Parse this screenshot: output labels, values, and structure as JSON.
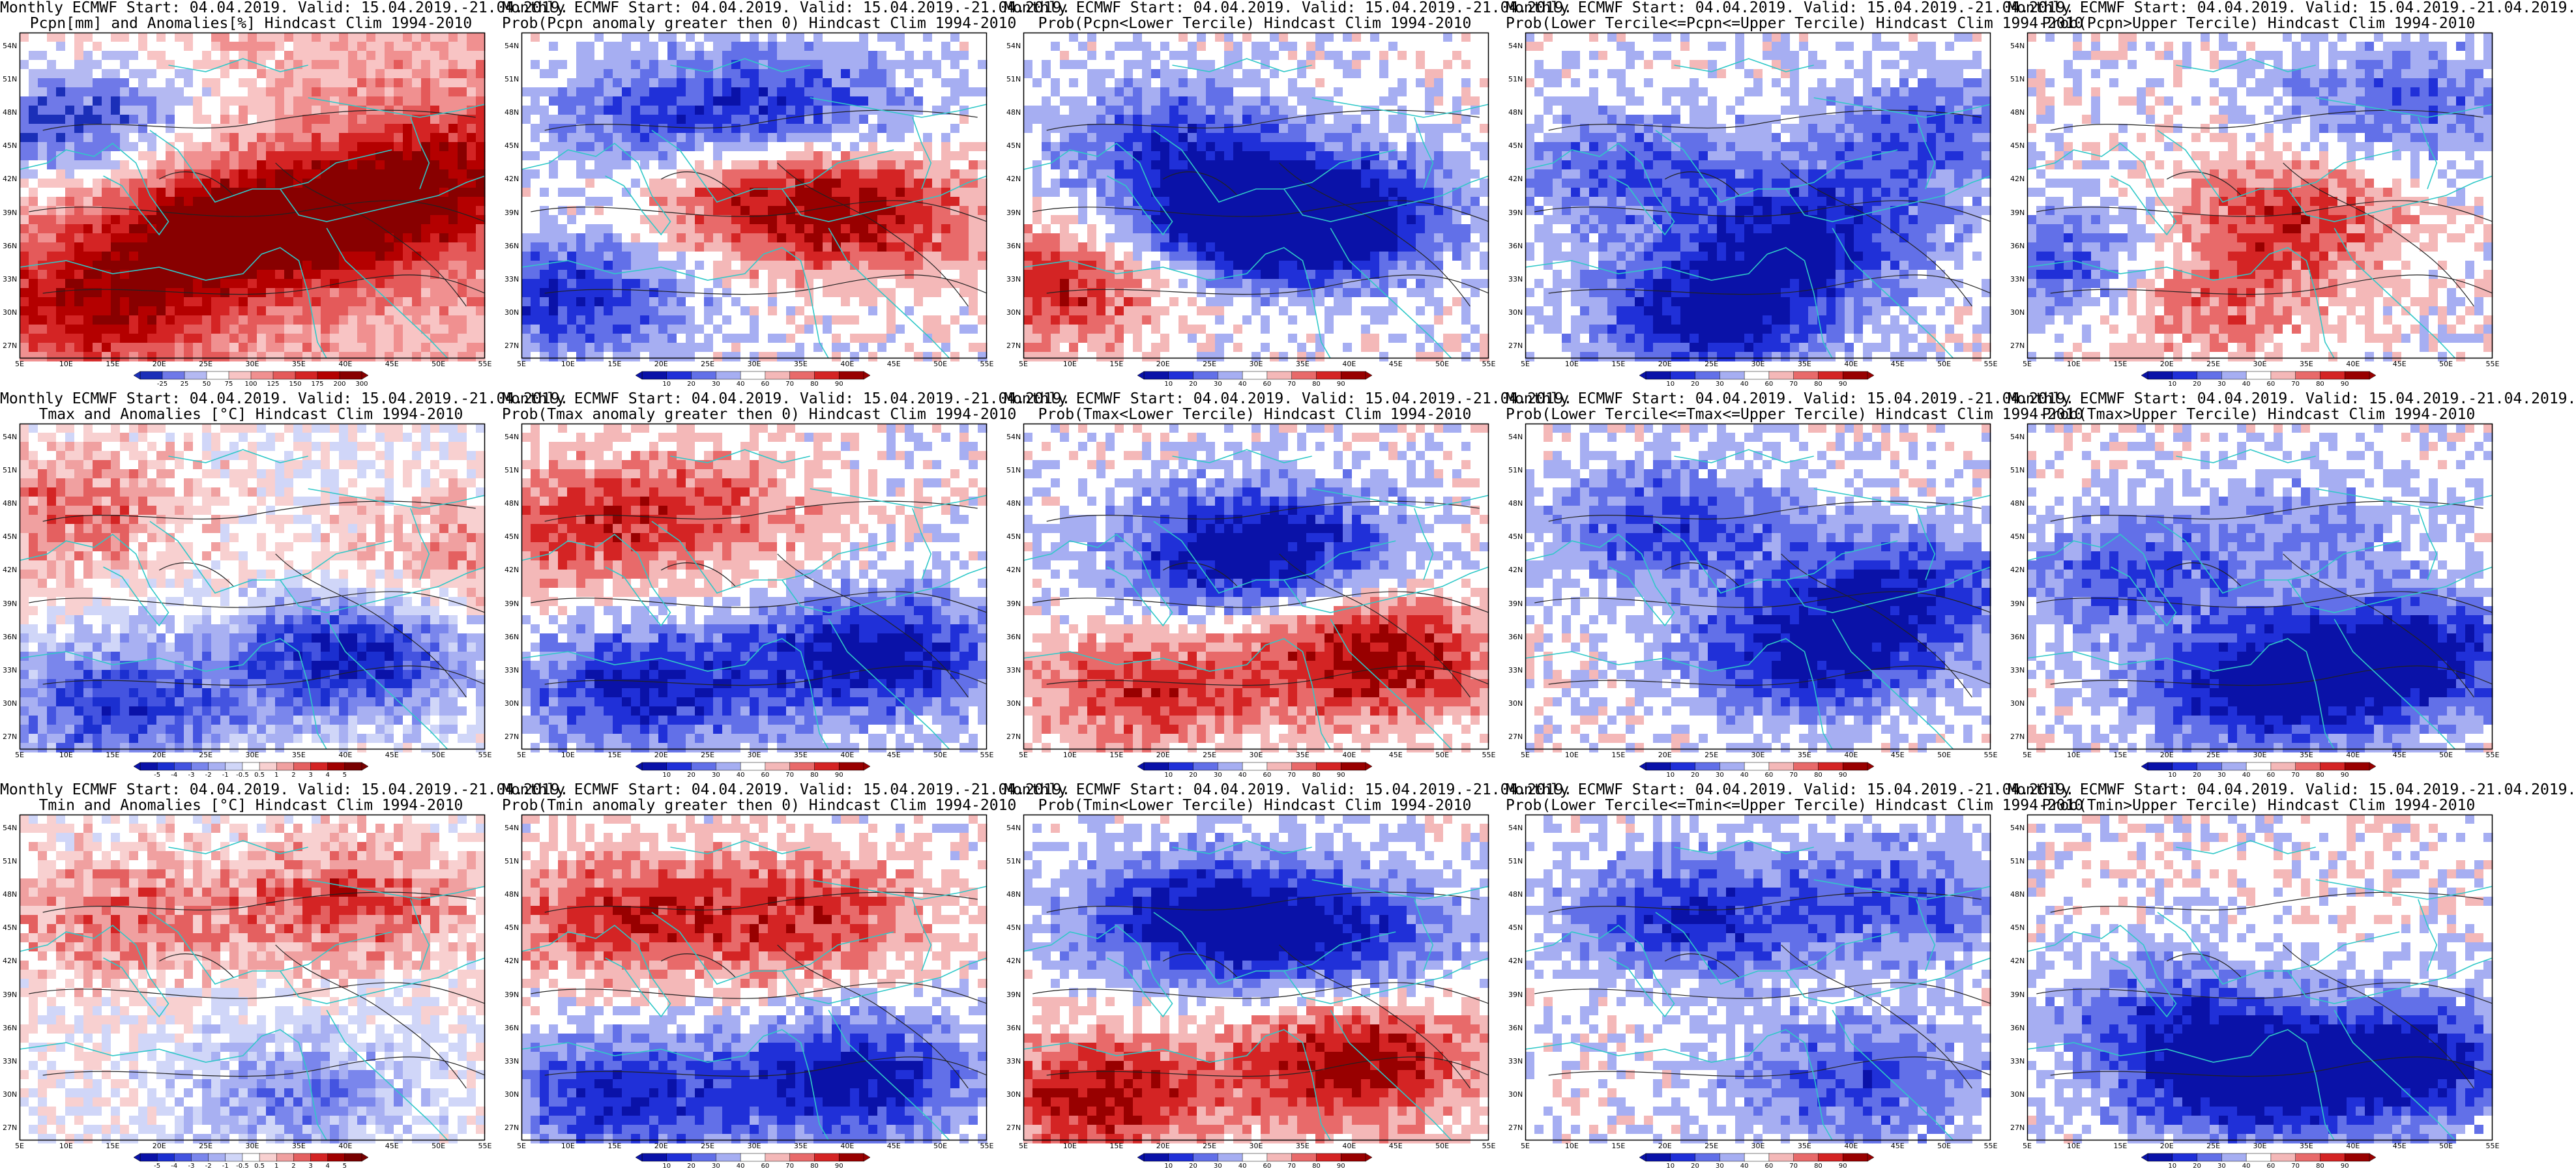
{
  "page": {
    "rows": 3,
    "cols": 5
  },
  "axes": {
    "lat_labels": [
      "54N",
      "51N",
      "48N",
      "45N",
      "42N",
      "39N",
      "36N",
      "33N",
      "30N",
      "27N"
    ],
    "lon_labels": [
      "5E",
      "10E",
      "15E",
      "20E",
      "25E",
      "30E",
      "35E",
      "40E",
      "45E",
      "50E",
      "55E"
    ]
  },
  "colors": {
    "coast": "#30c8c8",
    "contour": "#222222",
    "frame": "#000000"
  },
  "legends": {
    "precip_anom": {
      "labels": [
        "-25",
        "25",
        "50",
        "75",
        "100",
        "125",
        "150",
        "175",
        "200",
        "300"
      ],
      "colors": [
        "#1b2fb8",
        "#6f79e8",
        "#b4b9f2",
        "#ffffff",
        "#f8c4c4",
        "#f09090",
        "#e45a5a",
        "#d42424",
        "#b40000",
        "#880000"
      ]
    },
    "temp_anom": {
      "labels": [
        "-5",
        "-4",
        "-3",
        "-2",
        "-1",
        "-0.5",
        "0.5",
        "1",
        "2",
        "3",
        "4",
        "5"
      ],
      "colors": [
        "#0a12a8",
        "#1b2fd0",
        "#4454e0",
        "#7a86ec",
        "#a8b0f2",
        "#d0d6f8",
        "#ffffff",
        "#f8d0d0",
        "#f0a0a0",
        "#e46060",
        "#d42424",
        "#a00000",
        "#780000"
      ]
    },
    "prob": {
      "labels": [
        "10",
        "20",
        "30",
        "40",
        "60",
        "70",
        "80",
        "90"
      ],
      "colors": [
        "#0a12a8",
        "#2030d8",
        "#6270e8",
        "#a6aef2",
        "#ffffff",
        "#f4b8b8",
        "#e86a6a",
        "#d42424",
        "#980000"
      ]
    }
  },
  "panels": [
    {
      "title1": "Monthly ECMWF Start: 04.04.2019. Valid: 15.04.2019.-21.04.2019.",
      "title2": "Pcpn[mm] and Anomalies[%] Hindcast Clim 1994-2010",
      "legend": "precip_anom",
      "field": "precip_anom"
    },
    {
      "title1": "Monthly ECMWF Start: 04.04.2019. Valid: 15.04.2019.-21.04.2019.",
      "title2": "Prob(Pcpn anomaly greater then 0) Hindcast Clim 1994-2010",
      "legend": "prob",
      "field": "prob_gt0_p"
    },
    {
      "title1": "Monthly ECMWF Start: 04.04.2019. Valid: 15.04.2019.-21.04.2019.",
      "title2": "Prob(Pcpn<Lower Tercile) Hindcast Clim 1994-2010",
      "legend": "prob",
      "field": "prob_low_p"
    },
    {
      "title1": "Monthly ECMWF Start: 04.04.2019. Valid: 15.04.2019.-21.04.2019.",
      "title2": "Prob(Lower Tercile<=Pcpn<=Upper Tercile) Hindcast Clim 1994-2010",
      "legend": "prob",
      "field": "prob_mid_p"
    },
    {
      "title1": "Monthly ECMWF Start: 04.04.2019. Valid: 15.04.2019.-21.04.2019.",
      "title2": "Prob(Pcpn>Upper Tercile) Hindcast Clim 1994-2010",
      "legend": "prob",
      "field": "prob_up_p"
    },
    {
      "title1": "Monthly ECMWF Start: 04.04.2019. Valid: 15.04.2019.-21.04.2019.",
      "title2": "Tmax and Anomalies [°C] Hindcast Clim 1994-2010",
      "legend": "temp_anom",
      "field": "tmax_anom"
    },
    {
      "title1": "Monthly ECMWF Start: 04.04.2019. Valid: 15.04.2019.-21.04.2019.",
      "title2": "Prob(Tmax anomaly greater then 0) Hindcast Clim 1994-2010",
      "legend": "prob",
      "field": "tmax_gt0"
    },
    {
      "title1": "Monthly ECMWF Start: 04.04.2019. Valid: 15.04.2019.-21.04.2019.",
      "title2": "Prob(Tmax<Lower Tercile) Hindcast Clim 1994-2010",
      "legend": "prob",
      "field": "tmax_low"
    },
    {
      "title1": "Monthly ECMWF Start: 04.04.2019. Valid: 15.04.2019.-21.04.2019.",
      "title2": "Prob(Lower Tercile<=Tmax<=Upper Tercile) Hindcast Clim 1994-2010",
      "legend": "prob",
      "field": "tmax_mid"
    },
    {
      "title1": "Monthly ECMWF Start: 04.04.2019. Valid: 15.04.2019.-21.04.2019.",
      "title2": "Prob(Tmax>Upper Tercile) Hindcast Clim 1994-2010",
      "legend": "prob",
      "field": "tmax_up"
    },
    {
      "title1": "Monthly ECMWF Start: 04.04.2019. Valid: 15.04.2019.-21.04.2019.",
      "title2": "Tmin and Anomalies [°C] Hindcast Clim 1994-2010",
      "legend": "temp_anom",
      "field": "tmin_anom"
    },
    {
      "title1": "Monthly ECMWF Start: 04.04.2019. Valid: 15.04.2019.-21.04.2019.",
      "title2": "Prob(Tmin anomaly greater then 0) Hindcast Clim 1994-2010",
      "legend": "prob",
      "field": "tmin_gt0"
    },
    {
      "title1": "Monthly ECMWF Start: 04.04.2019. Valid: 15.04.2019.-21.04.2019.",
      "title2": "Prob(Tmin<Lower Tercile) Hindcast Clim 1994-2010",
      "legend": "prob",
      "field": "tmin_low"
    },
    {
      "title1": "Monthly ECMWF Start: 04.04.2019. Valid: 15.04.2019.-21.04.2019.",
      "title2": "Prob(Lower Tercile<=Tmin<=Upper Tercile) Hindcast Clim 1994-2010",
      "legend": "prob",
      "field": "tmin_mid"
    },
    {
      "title1": "Monthly ECMWF Start: 04.04.2019. Valid: 15.04.2019.-21.04.2019.",
      "title2": "Prob(Tmin>Upper Tercile) Hindcast Clim 1994-2010",
      "legend": "prob",
      "field": "tmin_up"
    }
  ]
}
